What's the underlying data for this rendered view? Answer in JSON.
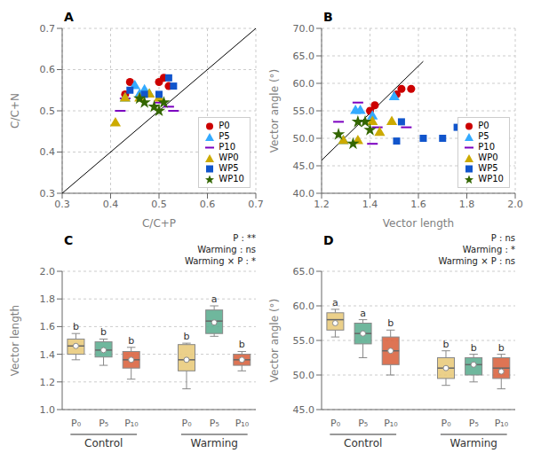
{
  "chart_data": [
    {
      "type": "scatter",
      "title": "A",
      "x_label": "C/C+P",
      "y_label": "C/C+N",
      "xlim": [
        0.3,
        0.7
      ],
      "ylim": [
        0.3,
        0.7
      ],
      "xticks": [
        0.3,
        0.4,
        0.5,
        0.6,
        0.7
      ],
      "yticks": [
        0.3,
        0.4,
        0.5,
        0.6,
        0.7
      ],
      "grid": true,
      "legend": "lower right",
      "series": [
        {
          "type": "line",
          "color": "#000000",
          "line_style": "solid",
          "x": [
            0.3,
            0.7
          ],
          "values": [
            0.3,
            0.7
          ]
        },
        {
          "name": "P0",
          "color": "#CC0000",
          "marker": "circle",
          "x": [
            0.43,
            0.44,
            0.5,
            0.51,
            0.52
          ],
          "values": [
            0.54,
            0.57,
            0.57,
            0.58,
            0.56
          ]
        },
        {
          "name": "P5",
          "color": "#33AAFF",
          "marker": "triangle",
          "x": [
            0.43,
            0.45,
            0.46,
            0.47,
            0.48
          ],
          "values": [
            0.53,
            0.56,
            0.54,
            0.55,
            0.54
          ]
        },
        {
          "name": "P10",
          "color": "#7B00C0",
          "marker": "hline",
          "x": [
            0.42,
            0.43,
            0.5,
            0.52,
            0.53
          ],
          "values": [
            0.5,
            0.53,
            0.52,
            0.51,
            0.5
          ]
        },
        {
          "name": "WP0",
          "color": "#CCAA00",
          "marker": "triangle",
          "x": [
            0.41,
            0.43,
            0.46,
            0.48,
            0.5
          ],
          "values": [
            0.47,
            0.53,
            0.53,
            0.54,
            0.53
          ]
        },
        {
          "name": "WP5",
          "color": "#1155CC",
          "marker": "square",
          "x": [
            0.44,
            0.47,
            0.5,
            0.52,
            0.53
          ],
          "values": [
            0.55,
            0.54,
            0.54,
            0.58,
            0.56
          ]
        },
        {
          "name": "WP10",
          "color": "#336600",
          "marker": "star",
          "x": [
            0.46,
            0.47,
            0.49,
            0.5,
            0.51
          ],
          "values": [
            0.53,
            0.52,
            0.51,
            0.5,
            0.52
          ]
        }
      ]
    },
    {
      "type": "scatter",
      "title": "B",
      "x_label": "Vector length",
      "y_label": "Vector angle (°)",
      "xlim": [
        1.2,
        2.0
      ],
      "ylim": [
        40.0,
        70.0
      ],
      "xticks": [
        1.2,
        1.4,
        1.6,
        1.8,
        {
          "value": 2.0,
          "label": "2.0"
        }
      ],
      "yticks": [
        {
          "value": 40.0,
          "label": "40.0"
        },
        {
          "value": 45.0,
          "label": "45.0"
        },
        {
          "value": 50.0,
          "label": "50.0"
        },
        {
          "value": 55.0,
          "label": "55.0"
        },
        {
          "value": 60.0,
          "label": "60.0"
        },
        {
          "value": 65.0,
          "label": "65.0"
        },
        {
          "value": 70.0,
          "label": "70.0"
        }
      ],
      "grid": true,
      "legend": "lower right",
      "series": [
        {
          "type": "line",
          "color": "#000000",
          "line_style": "solid",
          "x": [
            1.2,
            1.62
          ],
          "values": [
            46.0,
            64.0
          ]
        },
        {
          "name": "P0",
          "color": "#CC0000",
          "marker": "circle",
          "x": [
            1.4,
            1.42,
            1.51,
            1.53,
            1.57
          ],
          "values": [
            55.0,
            56.0,
            58.0,
            59.0,
            59.0
          ]
        },
        {
          "name": "P5",
          "color": "#33AAFF",
          "marker": "triangle",
          "x": [
            1.29,
            1.34,
            1.36,
            1.41,
            1.5
          ],
          "values": [
            49.5,
            55.0,
            55.0,
            54.0,
            57.5
          ]
        },
        {
          "name": "P10",
          "color": "#7B00C0",
          "marker": "hline",
          "x": [
            1.27,
            1.35,
            1.41,
            1.43,
            1.55
          ],
          "values": [
            53.0,
            56.5,
            49.0,
            52.0,
            52.0
          ]
        },
        {
          "name": "WP0",
          "color": "#CCAA00",
          "marker": "triangle",
          "x": [
            1.29,
            1.35,
            1.41,
            1.44,
            1.49
          ],
          "values": [
            49.5,
            49.5,
            53.0,
            51.0,
            53.0
          ]
        },
        {
          "name": "WP5",
          "color": "#1155CC",
          "marker": "square",
          "x": [
            1.51,
            1.53,
            1.62,
            1.7,
            1.76
          ],
          "values": [
            49.5,
            53.0,
            50.0,
            50.0,
            52.0
          ]
        },
        {
          "name": "WP10",
          "color": "#336600",
          "marker": "star",
          "x": [
            1.27,
            1.33,
            1.35,
            1.38,
            1.4
          ],
          "values": [
            50.7,
            49.0,
            53.0,
            53.0,
            51.5
          ]
        }
      ]
    },
    {
      "type": "box",
      "title": "C",
      "y_label": "Vector length",
      "ylim": [
        1.0,
        2.0
      ],
      "yticks": [
        {
          "value": 1.0,
          "label": "1.0"
        },
        1.2,
        1.4,
        1.6,
        1.8,
        {
          "value": 2.0,
          "label": "2.0"
        }
      ],
      "grid": "y",
      "annotation": "P : **\nWarming : ns\nWarming × P : *",
      "categories": [
        "P₀",
        "P₅",
        "P₁₀"
      ],
      "groups": [
        {
          "name": "Control",
          "boxes": [
            {
              "q1": 1.4,
              "median": 1.46,
              "q3": 1.51,
              "whislo": 1.36,
              "whishi": 1.55,
              "mean": 1.46,
              "letter": "b",
              "color": "#E8C97A"
            },
            {
              "q1": 1.38,
              "median": 1.43,
              "q3": 1.49,
              "whislo": 1.32,
              "whishi": 1.51,
              "mean": 1.43,
              "letter": "b",
              "color": "#5BAD8F"
            },
            {
              "q1": 1.3,
              "median": 1.36,
              "q3": 1.42,
              "whislo": 1.22,
              "whishi": 1.45,
              "mean": 1.36,
              "letter": "b",
              "color": "#D9613C"
            }
          ]
        },
        {
          "name": "Warming",
          "boxes": [
            {
              "q1": 1.28,
              "median": 1.36,
              "q3": 1.47,
              "whislo": 1.15,
              "whishi": 1.48,
              "mean": 1.36,
              "letter": "b",
              "color": "#E8C97A"
            },
            {
              "q1": 1.55,
              "median": 1.64,
              "q3": 1.72,
              "whislo": 1.53,
              "whishi": 1.75,
              "mean": 1.63,
              "letter": "a",
              "color": "#5BAD8F"
            },
            {
              "q1": 1.32,
              "median": 1.36,
              "q3": 1.4,
              "whislo": 1.28,
              "whishi": 1.42,
              "mean": 1.36,
              "letter": "b",
              "color": "#D9613C"
            }
          ]
        }
      ]
    },
    {
      "type": "box",
      "title": "D",
      "y_label": "Vector angle (°)",
      "ylim": [
        45.0,
        65.0
      ],
      "yticks": [
        {
          "value": 45.0,
          "label": "45.0"
        },
        {
          "value": 50.0,
          "label": "50.0"
        },
        {
          "value": 55.0,
          "label": "55.0"
        },
        {
          "value": 60.0,
          "label": "60.0"
        },
        {
          "value": 65.0,
          "label": "65.0"
        }
      ],
      "grid": "y",
      "annotation": "P : ns\nWarming : *\nWarming × P : ns",
      "categories": [
        "P₀",
        "P₅",
        "P₁₀"
      ],
      "groups": [
        {
          "name": "Control",
          "boxes": [
            {
              "q1": 56.5,
              "median": 58.0,
              "q3": 59.0,
              "whislo": 55.5,
              "whishi": 59.5,
              "mean": 57.5,
              "letter": "a",
              "color": "#E8C97A"
            },
            {
              "q1": 54.5,
              "median": 56.0,
              "q3": 57.5,
              "whislo": 52.5,
              "whishi": 58.0,
              "mean": 56.0,
              "letter": "a",
              "color": "#5BAD8F"
            },
            {
              "q1": 51.5,
              "median": 53.5,
              "q3": 55.5,
              "whislo": 50.0,
              "whishi": 56.5,
              "mean": 53.5,
              "letter": "b",
              "color": "#D9613C"
            }
          ]
        },
        {
          "name": "Warming",
          "boxes": [
            {
              "q1": 49.5,
              "median": 51.0,
              "q3": 52.5,
              "whislo": 48.5,
              "whishi": 53.5,
              "mean": 51.0,
              "letter": "b",
              "color": "#E8C97A"
            },
            {
              "q1": 50.0,
              "median": 51.5,
              "q3": 52.5,
              "whislo": 49.0,
              "whishi": 53.0,
              "mean": 51.5,
              "letter": "b",
              "color": "#5BAD8F"
            },
            {
              "q1": 49.5,
              "median": 51.0,
              "q3": 52.5,
              "whislo": 48.0,
              "whishi": 53.0,
              "mean": 50.5,
              "letter": "b",
              "color": "#D9613C"
            }
          ]
        }
      ]
    }
  ]
}
